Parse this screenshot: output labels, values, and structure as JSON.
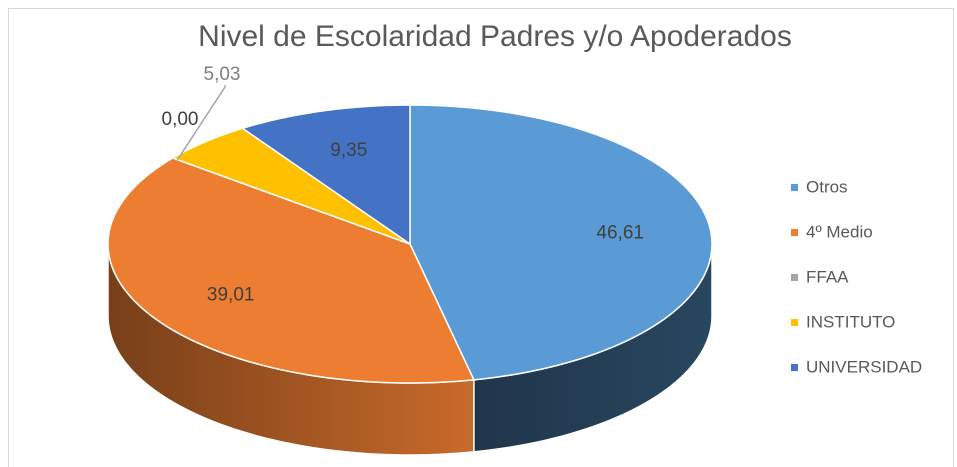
{
  "chart_data": {
    "type": "pie3d",
    "title": "Nivel de Escolaridad Padres y/o Apoderados",
    "categories": [
      "Otros",
      "4º Medio",
      "FFAA",
      "INSTITUTO",
      "UNIVERSIDAD"
    ],
    "values": [
      46.61,
      39.01,
      0.0,
      5.03,
      9.35
    ],
    "value_labels": [
      "46,61",
      "39,01",
      "0,00",
      "5,03",
      "9,35"
    ],
    "colors": [
      "#5b9bd5",
      "#ed7d31",
      "#a5a5a5",
      "#ffc000",
      "#4472c4"
    ],
    "legend": "right"
  }
}
